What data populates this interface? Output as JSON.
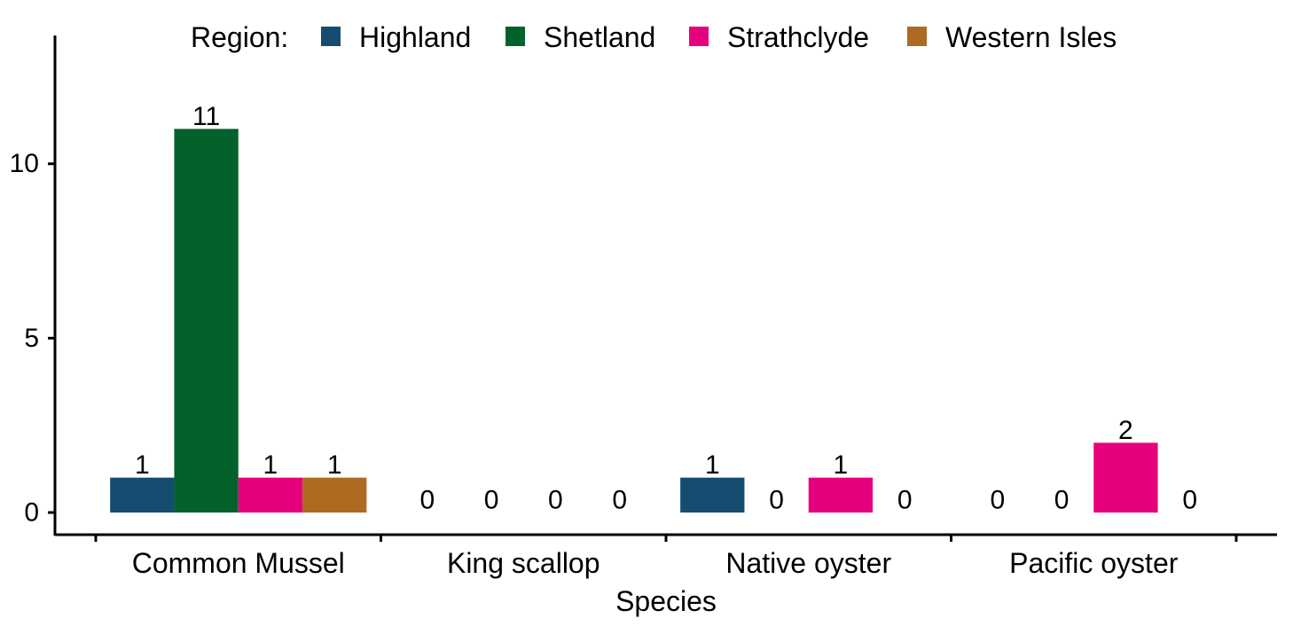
{
  "chart_data": {
    "type": "bar",
    "categories": [
      "Common Mussel",
      "King scallop",
      "Native oyster",
      "Pacific oyster"
    ],
    "series": [
      {
        "name": "Highland",
        "values": [
          1,
          0,
          1,
          0
        ]
      },
      {
        "name": "Shetland",
        "values": [
          11,
          0,
          0,
          0
        ]
      },
      {
        "name": "Strathclyde",
        "values": [
          1,
          0,
          1,
          2
        ]
      },
      {
        "name": "Western Isles",
        "values": [
          1,
          0,
          0,
          0
        ]
      }
    ],
    "colors": [
      "#164c70",
      "#03622c",
      "#e6007e",
      "#ae6a21"
    ],
    "legend_title": "Region:",
    "legend_position": "top",
    "xlabel": "Species",
    "ylabel": "",
    "ylim": [
      -0.65,
      13.5
    ],
    "yticks": [
      0,
      5,
      10
    ],
    "grid": false,
    "data_labels": true
  }
}
